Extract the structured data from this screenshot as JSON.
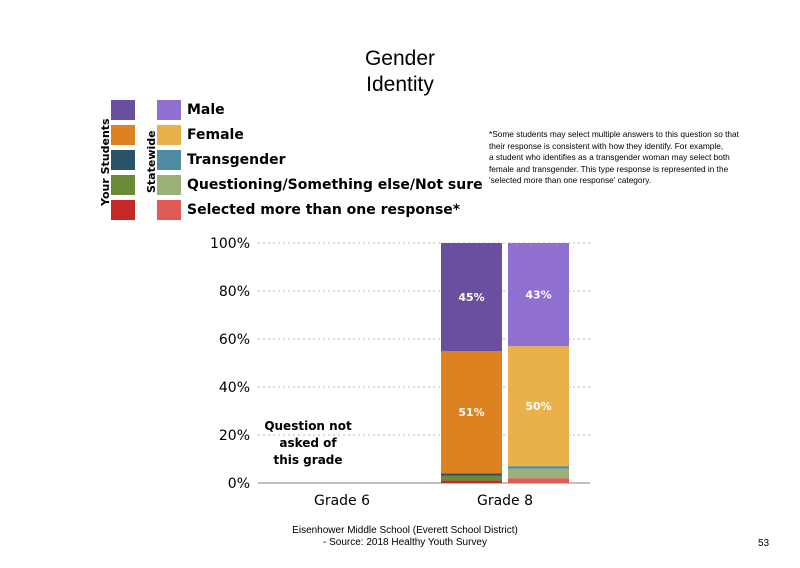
{
  "chart_data": {
    "type": "bar",
    "stacked": true,
    "title": "Gender Identity",
    "categories": [
      "Grade 6",
      "Grade 8"
    ],
    "groups": [
      "Your Students",
      "Statewide"
    ],
    "ylim": [
      0,
      100
    ],
    "yticks": [
      "0%",
      "20%",
      "40%",
      "60%",
      "80%",
      "100%"
    ],
    "grid": true,
    "series": [
      {
        "name": "Selected more than one response*",
        "your_color": "#c62828",
        "state_color": "#e05a56",
        "values": {
          "Grade 8": {
            "Your Students": 1,
            "Statewide": 2
          }
        }
      },
      {
        "name": "Questioning/Something else/Not sure",
        "your_color": "#6a8a3a",
        "state_color": "#9ab27a",
        "values": {
          "Grade 8": {
            "Your Students": 2,
            "Statewide": 4
          }
        }
      },
      {
        "name": "Transgender",
        "your_color": "#2a5268",
        "state_color": "#4e8aa0",
        "values": {
          "Grade 8": {
            "Your Students": 1,
            "Statewide": 1
          }
        }
      },
      {
        "name": "Female",
        "your_color": "#dd8220",
        "state_color": "#e9b04b",
        "values": {
          "Grade 8": {
            "Your Students": 51,
            "Statewide": 50
          }
        }
      },
      {
        "name": "Male",
        "your_color": "#6a4f9e",
        "state_color": "#8f6fd0",
        "values": {
          "Grade 8": {
            "Your Students": 45,
            "Statewide": 43
          }
        }
      }
    ],
    "data_labels": [
      {
        "category": "Grade 8",
        "group": "Your Students",
        "series": "Male",
        "text": "45%"
      },
      {
        "category": "Grade 8",
        "group": "Statewide",
        "series": "Male",
        "text": "43%"
      },
      {
        "category": "Grade 8",
        "group": "Your Students",
        "series": "Female",
        "text": "51%"
      },
      {
        "category": "Grade 8",
        "group": "Statewide",
        "series": "Female",
        "text": "50%"
      }
    ],
    "annotation": "Question not asked of this grade"
  },
  "title_lines": [
    "Gender",
    "Identity"
  ],
  "legend": {
    "your_students_label": "Your Students",
    "statewide_label": "Statewide",
    "items": [
      {
        "label": "Male",
        "your": "#6a4f9e",
        "state": "#8f6fd0"
      },
      {
        "label": "Female",
        "your": "#dd8220",
        "state": "#e9b04b"
      },
      {
        "label": "Transgender",
        "your": "#2a5268",
        "state": "#4e8aa0"
      },
      {
        "label": "Questioning/Something else/Not sure",
        "your": "#6a8a3a",
        "state": "#9ab27a"
      },
      {
        "label": "Selected more than one response*",
        "your": "#c62828",
        "state": "#e05a56"
      }
    ]
  },
  "note_lines": [
    "*Some students may select multiple answers to this question so that",
    "their response is consistent with how they identify. For example,",
    "a student who identifies as a transgender woman may select both",
    "female and transgender. This type response is represented in the",
    "'selected more than one response' category."
  ],
  "not_asked_lines": [
    "Question not",
    "asked of",
    "this grade"
  ],
  "footer_lines": [
    "Eisenhower Middle School (Everett School District)",
    "- Source: 2018 Healthy  Youth Survey"
  ],
  "page_number": "53"
}
